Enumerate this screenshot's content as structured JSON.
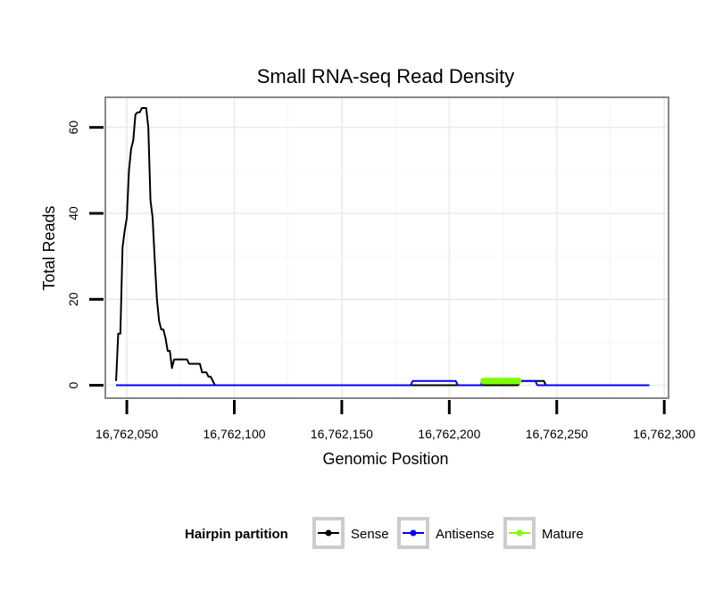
{
  "chart_data": {
    "type": "line",
    "title": "Small RNA-seq Read Density",
    "xlabel": "Genomic Position",
    "ylabel": "Total Reads",
    "xlim": [
      16762040,
      16762302
    ],
    "ylim": [
      -3,
      67
    ],
    "x_ticks": [
      16762050,
      16762100,
      16762150,
      16762200,
      16762250,
      16762300
    ],
    "x_tick_labels": [
      "16,762,050",
      "16,762,100",
      "16,762,150",
      "16,762,200",
      "16,762,250",
      "16,762,300"
    ],
    "y_ticks": [
      0,
      20,
      40,
      60
    ],
    "y_tick_labels": [
      "0",
      "20",
      "40",
      "60"
    ],
    "grid": true,
    "legend": {
      "title": "Hairpin partition",
      "position": "bottom",
      "entries": [
        "Sense",
        "Antisense",
        "Mature"
      ]
    },
    "series": [
      {
        "name": "Sense",
        "color": "#000000",
        "points": [
          [
            16762045,
            1
          ],
          [
            16762046,
            12
          ],
          [
            16762047,
            12
          ],
          [
            16762048,
            32
          ],
          [
            16762049,
            36
          ],
          [
            16762050,
            39
          ],
          [
            16762051,
            50
          ],
          [
            16762052,
            55
          ],
          [
            16762053,
            57
          ],
          [
            16762054,
            63
          ],
          [
            16762055,
            63.5
          ],
          [
            16762056,
            63.5
          ],
          [
            16762057,
            64.5
          ],
          [
            16762058,
            64.5
          ],
          [
            16762059,
            64.5
          ],
          [
            16762060,
            60
          ],
          [
            16762061,
            43
          ],
          [
            16762062,
            39
          ],
          [
            16762063,
            29
          ],
          [
            16762064,
            20
          ],
          [
            16762065,
            15
          ],
          [
            16762066,
            13
          ],
          [
            16762067,
            13
          ],
          [
            16762068,
            11
          ],
          [
            16762069,
            8
          ],
          [
            16762070,
            8
          ],
          [
            16762071,
            4
          ],
          [
            16762072,
            6
          ],
          [
            16762073,
            6
          ],
          [
            16762078,
            6
          ],
          [
            16762079,
            5
          ],
          [
            16762084,
            5
          ],
          [
            16762085,
            3
          ],
          [
            16762087,
            3
          ],
          [
            16762088,
            2
          ],
          [
            16762089,
            2
          ],
          [
            16762090,
            1
          ],
          [
            16762091,
            0
          ],
          [
            16762232,
            0
          ],
          [
            16762233,
            1
          ],
          [
            16762244,
            1
          ],
          [
            16762245,
            0
          ],
          [
            16762293,
            0
          ]
        ]
      },
      {
        "name": "Antisense",
        "color": "#0000ff",
        "points": [
          [
            16762045,
            0
          ],
          [
            16762182,
            0
          ],
          [
            16762183,
            1
          ],
          [
            16762203,
            1
          ],
          [
            16762204,
            0
          ],
          [
            16762215,
            0
          ],
          [
            16762215,
            1
          ],
          [
            16762240,
            1
          ],
          [
            16762241,
            0
          ],
          [
            16762293,
            0
          ]
        ]
      },
      {
        "name": "Mature",
        "color": "#7fff00",
        "points": [
          [
            16762216,
            1
          ],
          [
            16762217,
            1
          ],
          [
            16762218,
            1
          ],
          [
            16762219,
            1
          ],
          [
            16762220,
            1
          ],
          [
            16762221,
            1
          ],
          [
            16762222,
            1
          ],
          [
            16762223,
            1
          ],
          [
            16762224,
            1
          ],
          [
            16762225,
            1
          ],
          [
            16762226,
            1
          ],
          [
            16762227,
            1
          ],
          [
            16762228,
            1
          ],
          [
            16762229,
            1
          ],
          [
            16762230,
            1
          ],
          [
            16762231,
            1
          ],
          [
            16762232,
            1
          ]
        ]
      }
    ]
  }
}
